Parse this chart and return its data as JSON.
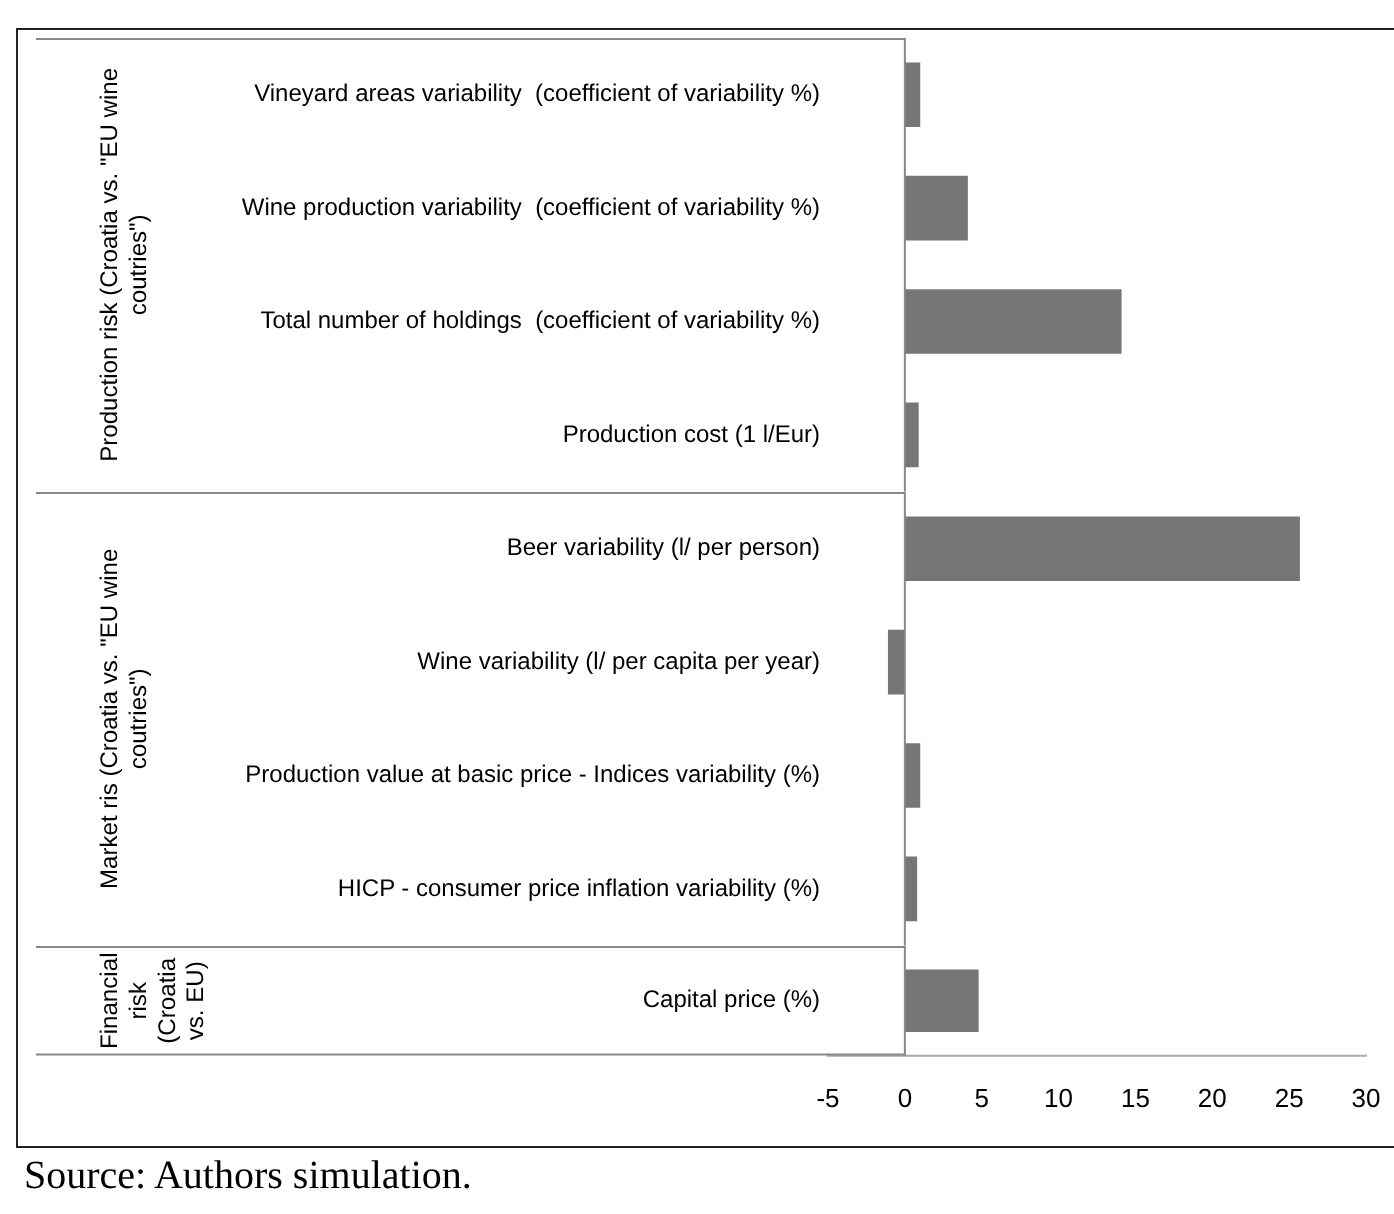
{
  "chart_data": [
    {
      "type": "bar",
      "orientation": "horizontal",
      "ylabel": "Production risk (Croatia vs. \"EU wine coutries\")",
      "categories": [
        "Vineyard areas variability  (coefficient of variability %)",
        "Wine production variability  (coefficient of variability %)",
        "Total number of holdings  (coefficient of variability %)",
        "Production cost (1 l/Eur)"
      ],
      "values": [
        1.0,
        4.1,
        14.1,
        0.9
      ],
      "color": "#767676",
      "xlim": [
        -5,
        30
      ],
      "tick_labels": "y",
      "grid": false,
      "legend": false,
      "ref_lines": [
        {
          "axis": "x",
          "value": 0,
          "color": "#888888"
        }
      ]
    },
    {
      "type": "bar",
      "orientation": "horizontal",
      "ylabel": "Market ris (Croatia vs. \"EU wine coutries\")",
      "categories": [
        "Beer variability (l/ per person)",
        "Wine variability (l/ per capita per year)",
        "Production value at basic price - Indices variability (%)",
        "HICP - consumer price inflation variability (%)"
      ],
      "values": [
        25.7,
        -1.1,
        1.0,
        0.8
      ],
      "color": "#767676",
      "xlim": [
        -5,
        30
      ],
      "tick_labels": "y",
      "grid": false,
      "legend": false,
      "ref_lines": [
        {
          "axis": "x",
          "value": 0,
          "color": "#888888"
        }
      ]
    },
    {
      "type": "bar",
      "orientation": "horizontal",
      "ylabel": "Financial risk (Croatia vs. EU)",
      "categories": [
        "Capital price (%)"
      ],
      "values": [
        4.8
      ],
      "color": "#767676",
      "xlim": [
        -5,
        30
      ],
      "xticks": [
        -5,
        0,
        5,
        10,
        15,
        20,
        25,
        30
      ],
      "grid": false,
      "legend": false,
      "ref_lines": [
        {
          "axis": "x",
          "value": 0,
          "color": "#888888"
        }
      ],
      "annotations": [
        "Source: Authors simulation."
      ]
    }
  ]
}
